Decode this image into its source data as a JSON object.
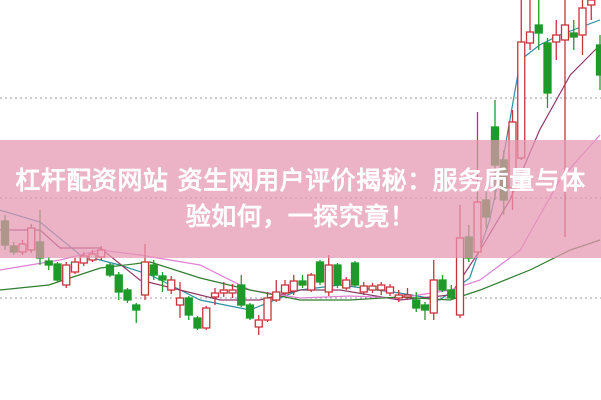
{
  "banner": {
    "title_line1": "杠杆配资网站 资生网用户评价揭秘：服务质量与体",
    "title_line2": "验如何，一探究竟！",
    "background": "#e8a9c0",
    "text_color": "#ffffff"
  },
  "chart_data": {
    "type": "candlestick",
    "title": "",
    "xlabel": "",
    "ylabel": "",
    "ylim": [
      0,
      400
    ],
    "grid": {
      "horizontal_dotted_levels": [
        102,
        202,
        302
      ]
    },
    "colors": {
      "up": "#c9323c",
      "down": "#1f9a2a",
      "ma": [
        "#2a8fa0",
        "#8e3a66",
        "#e07fd6",
        "#2f7d2f"
      ]
    },
    "candles": [
      [
        179,
        185,
        150,
        155
      ],
      [
        154,
        158,
        145,
        148
      ],
      [
        148,
        160,
        145,
        156
      ],
      [
        150,
        176,
        147,
        172
      ],
      [
        158,
        190,
        135,
        142
      ],
      [
        139,
        143,
        130,
        135
      ],
      [
        136,
        138,
        118,
        120
      ],
      [
        115,
        138,
        112,
        135
      ],
      [
        128,
        142,
        126,
        138
      ],
      [
        137,
        148,
        134,
        144
      ],
      [
        140,
        150,
        138,
        146
      ],
      [
        143,
        154,
        140,
        150
      ],
      [
        135,
        137,
        123,
        125
      ],
      [
        125,
        128,
        100,
        108
      ],
      [
        110,
        112,
        97,
        100
      ],
      [
        95,
        97,
        77,
        90
      ],
      [
        105,
        156,
        100,
        138
      ],
      [
        135,
        140,
        120,
        125
      ],
      [
        124,
        128,
        108,
        120
      ],
      [
        110,
        124,
        106,
        120
      ],
      [
        95,
        118,
        82,
        102
      ],
      [
        102,
        104,
        80,
        85
      ],
      [
        82,
        84,
        70,
        72
      ],
      [
        72,
        94,
        70,
        92
      ],
      [
        103,
        112,
        95,
        107
      ],
      [
        107,
        118,
        103,
        110
      ],
      [
        107,
        116,
        102,
        110
      ],
      [
        115,
        125,
        93,
        95
      ],
      [
        95,
        97,
        80,
        82
      ],
      [
        73,
        85,
        65,
        80
      ],
      [
        80,
        108,
        78,
        102
      ],
      [
        100,
        120,
        98,
        108
      ],
      [
        107,
        120,
        105,
        115
      ],
      [
        109,
        125,
        105,
        119
      ],
      [
        119,
        125,
        112,
        115
      ],
      [
        110,
        127,
        108,
        125
      ],
      [
        138,
        140,
        115,
        118
      ],
      [
        108,
        145,
        104,
        135
      ],
      [
        135,
        137,
        112,
        115
      ],
      [
        112,
        123,
        110,
        120
      ],
      [
        137,
        139,
        113,
        115
      ],
      [
        108,
        118,
        105,
        114
      ],
      [
        110,
        117,
        107,
        114
      ],
      [
        110,
        118,
        105,
        115
      ],
      [
        107,
        116,
        104,
        113
      ],
      [
        102,
        110,
        98,
        105
      ],
      [
        103,
        112,
        100,
        105
      ],
      [
        100,
        108,
        88,
        92
      ],
      [
        95,
        98,
        80,
        90
      ],
      [
        87,
        140,
        80,
        120
      ],
      [
        120,
        125,
        108,
        110
      ],
      [
        110,
        115,
        100,
        102
      ],
      [
        85,
        195,
        82,
        162
      ],
      [
        163,
        175,
        138,
        142
      ],
      [
        148,
        288,
        145,
        198
      ],
      [
        200,
        210,
        172,
        183
      ],
      [
        273,
        300,
        200,
        235
      ],
      [
        240,
        250,
        185,
        200
      ],
      [
        212,
        290,
        190,
        278
      ],
      [
        242,
        400,
        240,
        358
      ],
      [
        357,
        400,
        350,
        368
      ],
      [
        375,
        400,
        350,
        367
      ],
      [
        357,
        362,
        292,
        307
      ],
      [
        358,
        380,
        340,
        365
      ],
      [
        360,
        400,
        163,
        375
      ],
      [
        367,
        380,
        350,
        363
      ],
      [
        365,
        400,
        345,
        392
      ],
      [
        395,
        400,
        380,
        400
      ],
      [
        355,
        365,
        310,
        325
      ]
    ],
    "moving_averages": [
      [
        [
          -0.6,
          190
        ],
        [
          4,
          178
        ],
        [
          8.6,
          145
        ],
        [
          13.1,
          135
        ],
        [
          16.6,
          125
        ],
        [
          18.9,
          115
        ],
        [
          22.3,
          100
        ],
        [
          28,
          90
        ],
        [
          33.7,
          110
        ],
        [
          38.3,
          115
        ],
        [
          45.1,
          107
        ],
        [
          49.7,
          100
        ],
        [
          53.1,
          122
        ],
        [
          55.4,
          180
        ],
        [
          57.1,
          250
        ],
        [
          58.9,
          340
        ],
        [
          61.1,
          355
        ],
        [
          63.4,
          365
        ],
        [
          68,
          380
        ]
      ],
      [
        [
          -0.6,
          170
        ],
        [
          4,
          170
        ],
        [
          6.3,
          152
        ],
        [
          10.9,
          152
        ],
        [
          15.4,
          120
        ],
        [
          20,
          110
        ],
        [
          24.6,
          100
        ],
        [
          29.1,
          100
        ],
        [
          33.7,
          110
        ],
        [
          38.3,
          110
        ],
        [
          45.1,
          100
        ],
        [
          50.9,
          105
        ],
        [
          54.3,
          150
        ],
        [
          57.7,
          200
        ],
        [
          61.1,
          270
        ],
        [
          64.6,
          325
        ],
        [
          68,
          355
        ]
      ],
      [
        [
          -0.6,
          130
        ],
        [
          6.3,
          140
        ],
        [
          10.9,
          150
        ],
        [
          15.4,
          145
        ],
        [
          22.3,
          135
        ],
        [
          28,
          110
        ],
        [
          33.7,
          102
        ],
        [
          39.4,
          104
        ],
        [
          45.1,
          102
        ],
        [
          50.9,
          110
        ],
        [
          54.3,
          120
        ],
        [
          58.9,
          150
        ],
        [
          63.4,
          220
        ],
        [
          68,
          265
        ]
      ],
      [
        [
          -0.6,
          110
        ],
        [
          5,
          115
        ],
        [
          10.9,
          132
        ],
        [
          16.6,
          138
        ],
        [
          22.3,
          122
        ],
        [
          28,
          110
        ],
        [
          33.7,
          100
        ],
        [
          39.4,
          100
        ],
        [
          45.1,
          103
        ],
        [
          50.9,
          100
        ],
        [
          54.3,
          110
        ],
        [
          60,
          130
        ],
        [
          64.6,
          150
        ],
        [
          68,
          160
        ]
      ]
    ]
  }
}
